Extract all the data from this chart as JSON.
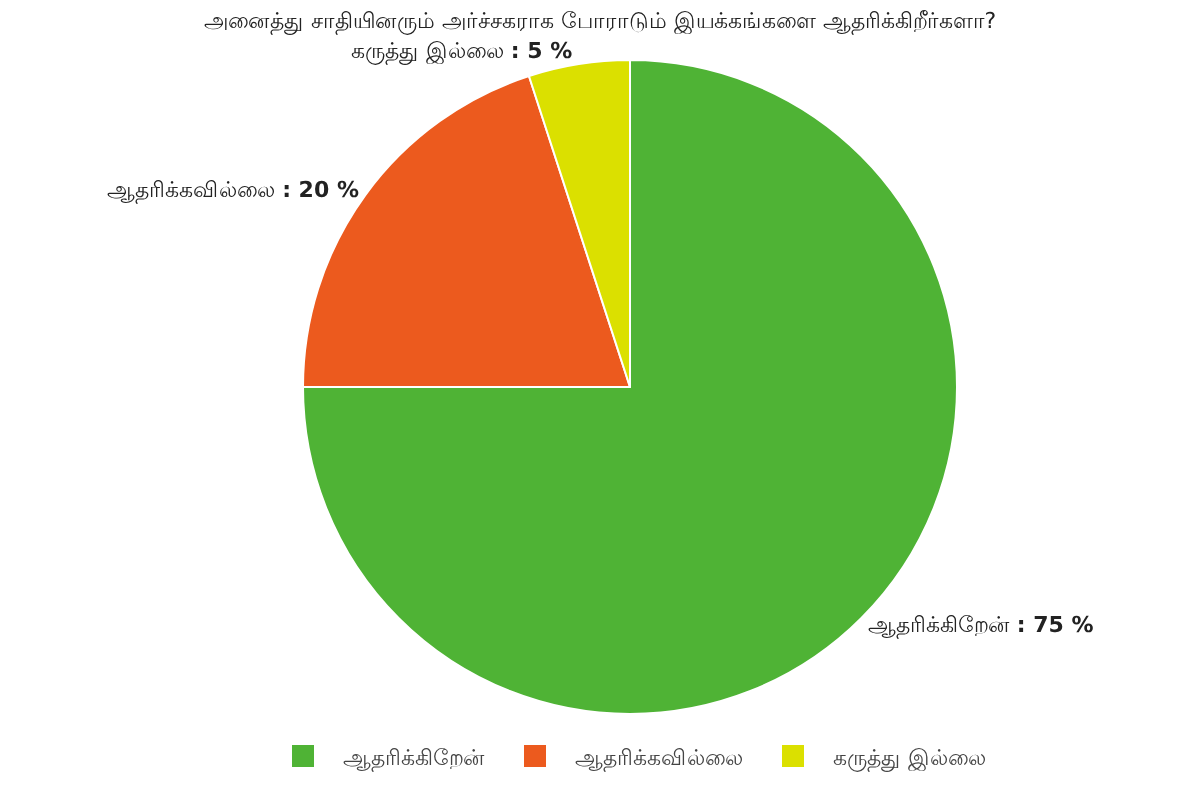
{
  "chart_data": {
    "type": "pie",
    "title": "அனைத்து சாதியினரும் அர்ச்சகராக போராடும் இயக்கங்களை ஆதரிக்கிறீர்களா?",
    "categories": [
      "ஆதரிக்கிறேன்",
      "ஆதரிக்கவில்லை",
      "கருத்து இல்லை"
    ],
    "values": [
      75,
      20,
      5
    ],
    "value_labels": [
      ": 75 %",
      ": 20 %",
      ": 5 %"
    ],
    "colors": [
      "#4fb335",
      "#ec5a1e",
      "#dbe000"
    ],
    "legend": "bottom"
  }
}
